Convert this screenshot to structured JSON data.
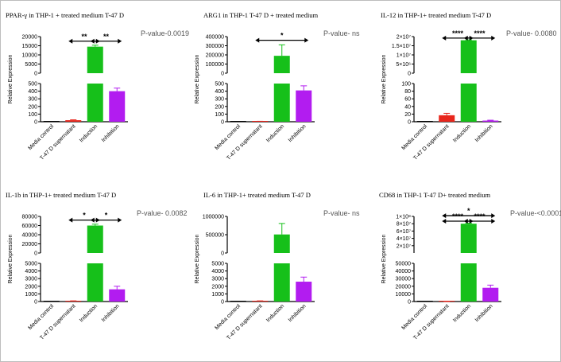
{
  "chart_data": [
    {
      "type": "bar",
      "title": "PPAR-γ in THP-1 + treated medium T-47 D",
      "pvalue": "P-value-0.0019",
      "ylabel": "Relative Expression",
      "categories": [
        "Media control",
        "T-47 D supernatant",
        "Induction",
        "Inhibition"
      ],
      "colors": [
        "#000000",
        "#e8261c",
        "#16c01a",
        "#b21cf0"
      ],
      "values": [
        1,
        20,
        14500,
        400
      ],
      "errors": [
        0,
        5,
        800,
        40
      ],
      "lower": {
        "range": [
          0,
          500
        ],
        "ticks": [
          "0",
          "100",
          "200",
          "300",
          "400",
          "500"
        ]
      },
      "upper": {
        "range": [
          0,
          20000
        ],
        "ticks": [
          "0",
          "5000",
          "10000",
          "15000",
          "20000"
        ]
      },
      "brackets": [
        {
          "from": 1,
          "to": 2,
          "label": "**",
          "value": 17500
        },
        {
          "from": 2,
          "to": 3,
          "label": "**",
          "value": 17500
        }
      ]
    },
    {
      "type": "bar",
      "title": "ARG1 in THP-1 T-47 D + treated medium",
      "pvalue": "P-value- ns",
      "ylabel": "Relative Expression",
      "categories": [
        "Media control",
        "T-47 D supernatant",
        "Induction",
        "Inhibition"
      ],
      "colors": [
        "#000000",
        "#e8261c",
        "#16c01a",
        "#b21cf0"
      ],
      "values": [
        1,
        5,
        190000,
        410
      ],
      "errors": [
        0,
        1,
        120000,
        60
      ],
      "lower": {
        "range": [
          0,
          500
        ],
        "ticks": [
          "0",
          "100",
          "200",
          "300",
          "400",
          "500"
        ]
      },
      "upper": {
        "range": [
          0,
          400000
        ],
        "ticks": [
          "0",
          "100000",
          "200000",
          "300000",
          "400000"
        ]
      },
      "brackets": [
        {
          "from": 1,
          "to": 3,
          "label": "*",
          "value": 360000
        }
      ]
    },
    {
      "type": "bar",
      "title": "IL-12 in THP-1+ treated medium T-47 D",
      "pvalue": "P-value- 0.0080",
      "ylabel": "Relative Expression",
      "categories": [
        "Media control",
        "T-47 D supernatant",
        "Induction",
        "Inhibition"
      ],
      "colors": [
        "#000000",
        "#e8261c",
        "#16c01a",
        "#b21cf0"
      ],
      "values": [
        1,
        17,
        18000000,
        3
      ],
      "errors": [
        0,
        5,
        200000,
        1
      ],
      "lower": {
        "range": [
          0,
          100
        ],
        "ticks": [
          "0",
          "20",
          "40",
          "60",
          "80",
          "100"
        ]
      },
      "upper": {
        "range": [
          0,
          20000000
        ],
        "ticks": [
          "0",
          "5×10⁶",
          "1×10⁷",
          "1.5×10⁷",
          "2×10⁷"
        ]
      },
      "brackets": [
        {
          "from": 1,
          "to": 2,
          "label": "****",
          "value": 19200000
        },
        {
          "from": 2,
          "to": 3,
          "label": "****",
          "value": 19200000
        }
      ]
    },
    {
      "type": "bar",
      "title": "IL-1b in THP-1+ treated medium T-47 D",
      "pvalue": "P-value- 0.0082",
      "ylabel": "Relative Expression",
      "categories": [
        "Media control",
        "T-47 D supernatant",
        "Induction",
        "Inhibition"
      ],
      "colors": [
        "#000000",
        "#e8261c",
        "#16c01a",
        "#b21cf0"
      ],
      "values": [
        1,
        60,
        60000,
        1600
      ],
      "errors": [
        0,
        30,
        3000,
        400
      ],
      "lower": {
        "range": [
          0,
          5000
        ],
        "ticks": [
          "0",
          "1000",
          "2000",
          "3000",
          "4000",
          "5000"
        ]
      },
      "upper": {
        "range": [
          0,
          80000
        ],
        "ticks": [
          "0",
          "20000",
          "40000",
          "60000",
          "80000"
        ]
      },
      "brackets": [
        {
          "from": 1,
          "to": 2,
          "label": "*",
          "value": 72000
        },
        {
          "from": 2,
          "to": 3,
          "label": "*",
          "value": 72000
        }
      ]
    },
    {
      "type": "bar",
      "title": "IL-6 in THP-1+ treated medium T-47 D",
      "pvalue": "P-value- ns",
      "ylabel": "Relative Expression",
      "categories": [
        "Media control",
        "T-47 D supernatant",
        "Induction",
        "Inhibition"
      ],
      "colors": [
        "#000000",
        "#e8261c",
        "#16c01a",
        "#b21cf0"
      ],
      "values": [
        1,
        60,
        760000,
        2600
      ],
      "errors": [
        0,
        30,
        450000,
        600
      ],
      "lower": {
        "range": [
          0,
          5000
        ],
        "ticks": [
          "0",
          "1000",
          "2000",
          "3000",
          "4000",
          "5000"
        ]
      },
      "upper": {
        "range": [
          0,
          1500000
        ],
        "ticks": [
          "0",
          "500000",
          "1000000"
        ]
      },
      "brackets": []
    },
    {
      "type": "bar",
      "title": "CD68 in THP-1 T-47 D+ treated medium",
      "pvalue": "P-value-<0.0001",
      "ylabel": "Relative Expression",
      "categories": [
        "Media control",
        "T-47 D supernatant",
        "Induction",
        "Inhibition"
      ],
      "colors": [
        "#000000",
        "#e8261c",
        "#16c01a",
        "#b21cf0"
      ],
      "values": [
        1,
        10,
        80000000,
        18000
      ],
      "errors": [
        0,
        3,
        1500000,
        3500
      ],
      "lower": {
        "range": [
          0,
          50000
        ],
        "ticks": [
          "0",
          "10000",
          "20000",
          "30000",
          "40000",
          "50000"
        ]
      },
      "upper": {
        "range": [
          0,
          100000000
        ],
        "ticks": [
          "2×10⁷",
          "4×10⁷",
          "6×10⁷",
          "8×10⁷",
          "1×10⁸"
        ],
        "tickvals": [
          20000000,
          40000000,
          60000000,
          80000000,
          100000000
        ],
        "min": 0
      },
      "brackets": [
        {
          "from": 1,
          "to": 2,
          "label": "****",
          "value": 87000000
        },
        {
          "from": 2,
          "to": 3,
          "label": "****",
          "value": 87000000
        },
        {
          "from": 1,
          "to": 3,
          "label": "*",
          "value": 102000000
        }
      ]
    }
  ]
}
